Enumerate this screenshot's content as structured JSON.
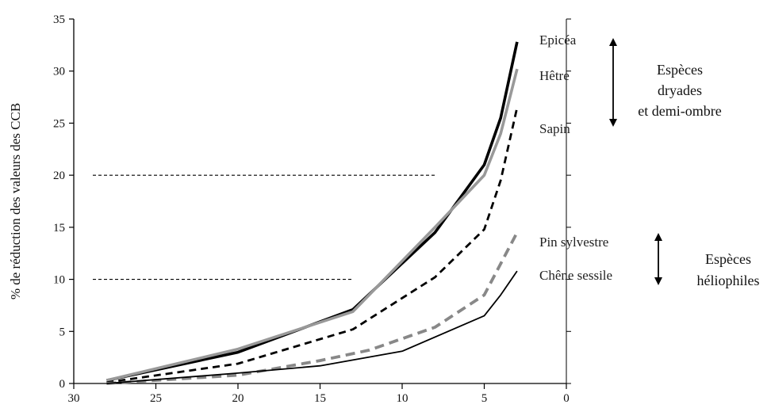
{
  "chart_data": {
    "type": "line",
    "title": "",
    "xlabel": "",
    "ylabel": "% de réduction des valeurs des CCB",
    "xlim": [
      30,
      0
    ],
    "ylim": [
      0,
      35
    ],
    "x_ticks": [
      "30",
      "25",
      "20",
      "15",
      "10",
      "5",
      "0"
    ],
    "y_ticks": [
      "0",
      "5",
      "10",
      "15",
      "20",
      "25",
      "30",
      "35"
    ],
    "grid": false,
    "series": [
      {
        "name": "Epicéa",
        "color": "#000000",
        "style": "solid-thick",
        "x": [
          28,
          20,
          13,
          8,
          5,
          4,
          3
        ],
        "y": [
          0.3,
          3.0,
          7.1,
          14.5,
          21.0,
          25.5,
          32.8
        ]
      },
      {
        "name": "Hêtre",
        "color": "#999999",
        "style": "solid-thick",
        "x": [
          28,
          20,
          13,
          8,
          5,
          4,
          3
        ],
        "y": [
          0.3,
          3.3,
          6.9,
          15.0,
          20.0,
          24.0,
          30.2
        ]
      },
      {
        "name": "Sapin",
        "color": "#000000",
        "style": "dashed",
        "x": [
          28,
          20,
          13,
          10,
          8,
          5,
          4,
          3
        ],
        "y": [
          0.1,
          1.9,
          5.2,
          8.2,
          10.2,
          14.8,
          19.5,
          26.5
        ]
      },
      {
        "name": "Pin sylvestre",
        "color": "#888888",
        "style": "dashed-thick",
        "x": [
          28,
          20,
          15,
          12,
          8,
          5,
          4,
          3
        ],
        "y": [
          0.0,
          0.8,
          2.2,
          3.2,
          5.4,
          8.5,
          11.5,
          14.5
        ]
      },
      {
        "name": "Chêne sessile",
        "color": "#000000",
        "style": "solid-thin",
        "x": [
          28,
          20,
          15,
          10,
          5,
          4,
          3
        ],
        "y": [
          0.0,
          1.0,
          1.7,
          3.1,
          6.5,
          8.5,
          10.8
        ]
      }
    ],
    "reference_lines": [
      {
        "y": 20,
        "x_from": 30,
        "x_to": 8,
        "style": "dotted"
      },
      {
        "y": 10,
        "x_from": 30,
        "x_to": 13,
        "style": "dotted"
      }
    ],
    "groups": [
      {
        "label_lines": [
          "Espèces",
          "dryades",
          "et demi-ombre"
        ]
      },
      {
        "label_lines": [
          "Espèces",
          "héliophiles"
        ]
      }
    ]
  }
}
